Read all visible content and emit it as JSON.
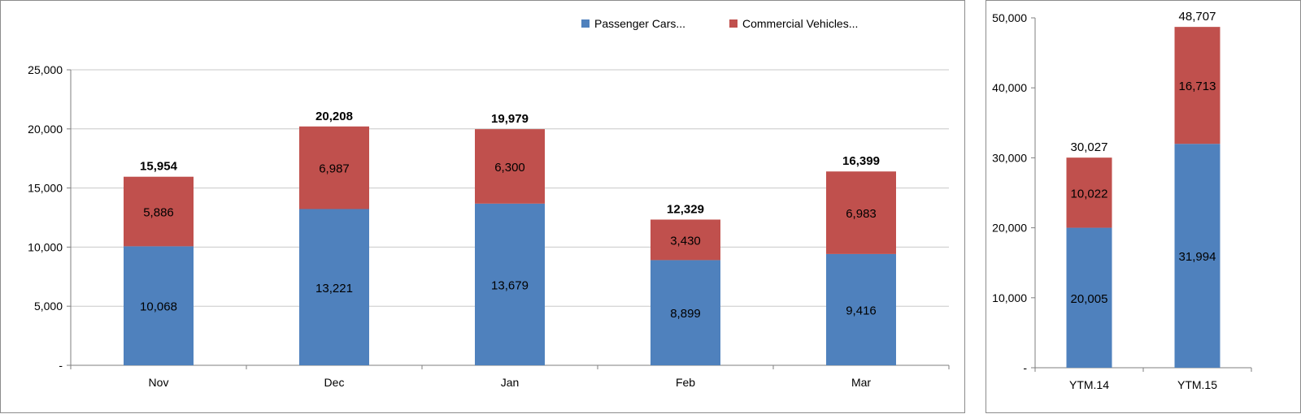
{
  "colors": {
    "passenger": "#4f81bd",
    "commercial": "#c0504d",
    "grid": "#c8c8c8",
    "axis": "#7f7f7f"
  },
  "legend": {
    "passenger_label": "Passenger Cars...",
    "commercial_label": "Commercial Vehicles..."
  },
  "chart_data": [
    {
      "type": "bar",
      "stacked": true,
      "categories": [
        "Nov",
        "Dec",
        "Jan",
        "Feb",
        "Mar"
      ],
      "series": [
        {
          "name": "Passenger Cars...",
          "values": [
            10068,
            13221,
            13679,
            8899,
            9416
          ]
        },
        {
          "name": "Commercial Vehicles...",
          "values": [
            5886,
            6987,
            6300,
            3430,
            6983
          ]
        }
      ],
      "totals": [
        15954,
        20208,
        19979,
        12329,
        16399
      ],
      "value_labels": {
        "passenger": [
          "10,068",
          "13,221",
          "13,679",
          "8,899",
          "9,416"
        ],
        "commercial": [
          "5,886",
          "6,987",
          "6,300",
          "3,430",
          "6,983"
        ],
        "totals": [
          "15,954",
          "20,208",
          "19,979",
          "12,329",
          "16,399"
        ]
      },
      "yticks": [
        0,
        5000,
        10000,
        15000,
        20000,
        25000
      ],
      "ytick_labels": [
        "-",
        "5,000",
        "10,000",
        "15,000",
        "20,000",
        "25,000"
      ],
      "ylim": [
        0,
        25000
      ],
      "grid": true,
      "legend_position": "top-right"
    },
    {
      "type": "bar",
      "stacked": true,
      "categories": [
        "YTM.14",
        "YTM.15"
      ],
      "series": [
        {
          "name": "Passenger Cars...",
          "values": [
            20005,
            31994
          ]
        },
        {
          "name": "Commercial Vehicles...",
          "values": [
            10022,
            16713
          ]
        }
      ],
      "totals": [
        30027,
        48707
      ],
      "value_labels": {
        "passenger": [
          "20,005",
          "31,994"
        ],
        "commercial": [
          "10,022",
          "16,713"
        ],
        "totals": [
          "30,027",
          "48,707"
        ]
      },
      "yticks": [
        0,
        10000,
        20000,
        30000,
        40000,
        50000
      ],
      "ytick_labels": [
        "-",
        "10,000",
        "20,000",
        "30,000",
        "40,000",
        "50,000"
      ],
      "ylim": [
        0,
        50000
      ],
      "grid": false
    }
  ]
}
